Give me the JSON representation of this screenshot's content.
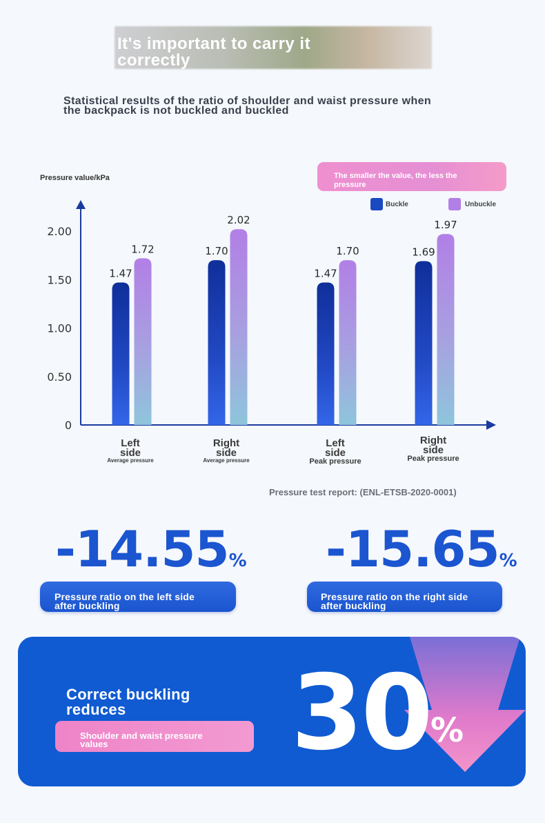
{
  "header": {
    "banner_title": "It's important to carry it correctly",
    "chart_title": "Statistical results of the ratio of shoulder and waist pressure when the backpack is not buckled and buckled"
  },
  "note": {
    "text": "The smaller the value, the less the pressure"
  },
  "legend": [
    {
      "label": "Buckle",
      "color": "#1a49c2"
    },
    {
      "label": "Unbuckle",
      "color": "#b27fe6"
    }
  ],
  "chart_data": {
    "type": "bar",
    "ylabel": "Pressure value/kPa",
    "ylim": [
      0,
      2.0
    ],
    "yticks": [
      "0",
      "0.50",
      "1.00",
      "1.50",
      "2.00"
    ],
    "ytick_values": [
      0,
      0.5,
      1.0,
      1.5,
      2.0
    ],
    "categories": [
      {
        "name": "Left side",
        "sub": "Average pressure"
      },
      {
        "name": "Right side",
        "sub": "Average pressure"
      },
      {
        "name": "Left side",
        "sub": "Peak pressure"
      },
      {
        "name": "Right side",
        "sub": "Peak pressure"
      }
    ],
    "series": [
      {
        "name": "Buckle",
        "values": [
          1.47,
          1.7,
          1.47,
          1.69
        ],
        "labels": [
          "1.47",
          "1.70",
          "1.47",
          "1.69"
        ]
      },
      {
        "name": "Unbuckle",
        "values": [
          1.72,
          2.02,
          1.7,
          1.97
        ],
        "labels": [
          "1.72",
          "2.02",
          "1.70",
          "1.97"
        ]
      }
    ]
  },
  "source": "Pressure test report: (ENL-ETSB-2020-0001)",
  "stats": [
    {
      "value": "-14.55",
      "unit": "%",
      "caption": "Pressure ratio on the left side after buckling"
    },
    {
      "value": "-15.65",
      "unit": "%",
      "caption": "Pressure ratio on the right side after buckling"
    }
  ],
  "summary": {
    "title": "Correct buckling reduces",
    "pill": "Shoulder and waist pressure values",
    "value": "30",
    "unit": "%"
  },
  "colors": {
    "accent": "#105bd2",
    "pink": "#ef8fcf",
    "purple": "#b27fe6",
    "navy": "#0f2f9a"
  }
}
